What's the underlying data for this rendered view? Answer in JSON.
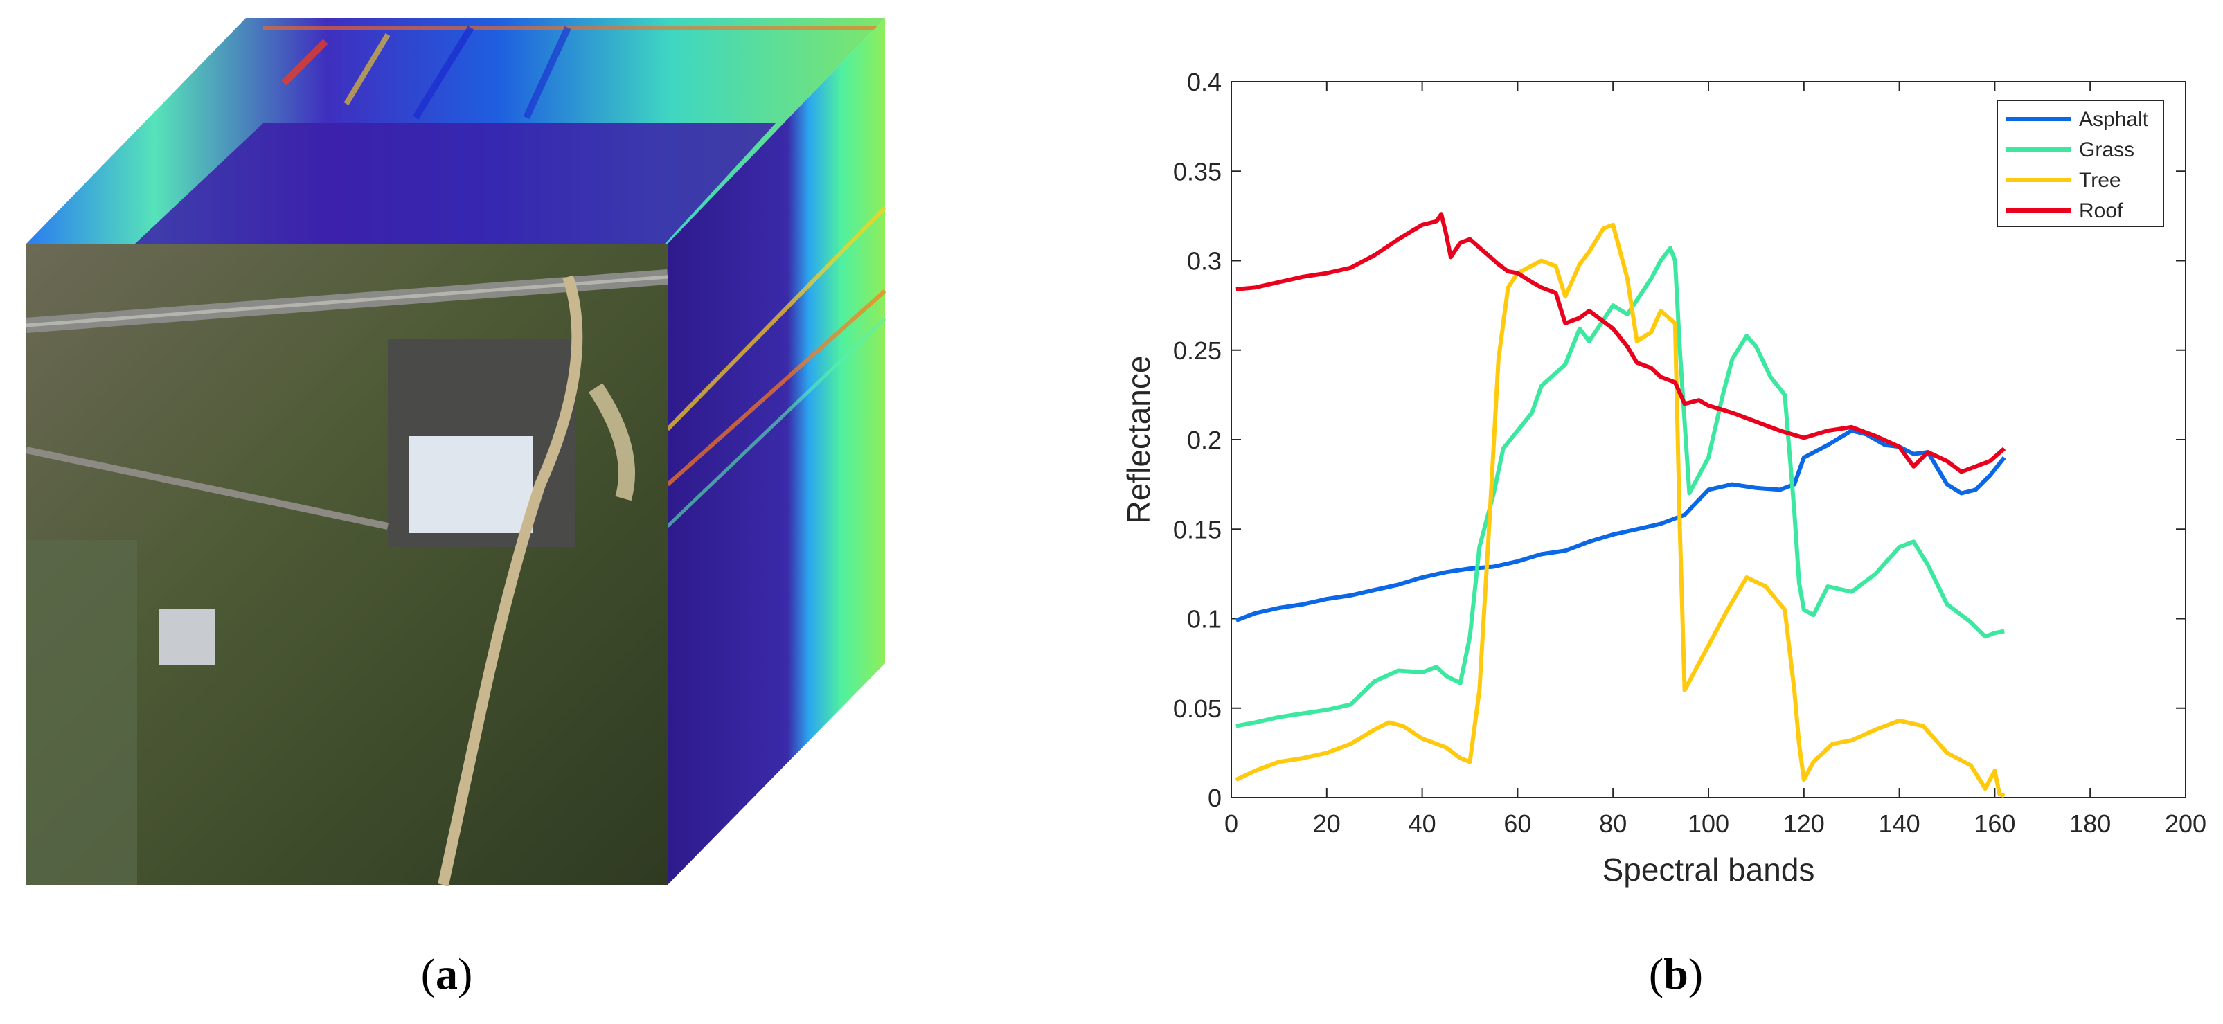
{
  "panels": {
    "a": {
      "label": "a"
    },
    "b": {
      "label": "b"
    }
  },
  "chart_data": {
    "type": "line",
    "title": "",
    "xlabel": "Spectral bands",
    "ylabel": "Reflectance",
    "xlim": [
      0,
      200
    ],
    "ylim": [
      0,
      0.4
    ],
    "xticks": [
      0,
      20,
      40,
      60,
      80,
      100,
      120,
      140,
      160,
      180,
      200
    ],
    "yticks": [
      0,
      0.05,
      0.1,
      0.15,
      0.2,
      0.25,
      0.3,
      0.35,
      0.4
    ],
    "legend_position": "top-right",
    "series": [
      {
        "name": "Asphalt",
        "color": "#0a67e6",
        "x": [
          1,
          5,
          10,
          15,
          20,
          25,
          30,
          35,
          40,
          45,
          50,
          55,
          60,
          65,
          70,
          75,
          80,
          85,
          90,
          95,
          100,
          105,
          110,
          115,
          118,
          120,
          125,
          130,
          133,
          137,
          140,
          143,
          146,
          150,
          153,
          156,
          159,
          162
        ],
        "values": [
          0.099,
          0.103,
          0.106,
          0.108,
          0.111,
          0.113,
          0.116,
          0.119,
          0.123,
          0.126,
          0.128,
          0.129,
          0.132,
          0.136,
          0.138,
          0.143,
          0.147,
          0.15,
          0.153,
          0.158,
          0.172,
          0.175,
          0.173,
          0.172,
          0.175,
          0.19,
          0.197,
          0.205,
          0.203,
          0.197,
          0.196,
          0.192,
          0.193,
          0.175,
          0.17,
          0.172,
          0.18,
          0.19
        ]
      },
      {
        "name": "Grass",
        "color": "#3ce8a0",
        "x": [
          1,
          5,
          10,
          15,
          20,
          25,
          30,
          35,
          40,
          43,
          45,
          48,
          50,
          52,
          55,
          57,
          60,
          63,
          65,
          70,
          73,
          75,
          80,
          83,
          85,
          88,
          90,
          92,
          93,
          94,
          96,
          100,
          103,
          105,
          108,
          110,
          113,
          116,
          118,
          119,
          120,
          122,
          125,
          130,
          135,
          140,
          143,
          146,
          150,
          155,
          158,
          160,
          162
        ],
        "values": [
          0.04,
          0.042,
          0.045,
          0.047,
          0.049,
          0.052,
          0.065,
          0.071,
          0.07,
          0.073,
          0.068,
          0.064,
          0.09,
          0.14,
          0.17,
          0.195,
          0.205,
          0.215,
          0.23,
          0.242,
          0.262,
          0.255,
          0.275,
          0.27,
          0.278,
          0.29,
          0.3,
          0.307,
          0.3,
          0.25,
          0.17,
          0.19,
          0.225,
          0.245,
          0.258,
          0.252,
          0.235,
          0.225,
          0.16,
          0.12,
          0.105,
          0.102,
          0.118,
          0.115,
          0.125,
          0.14,
          0.143,
          0.13,
          0.108,
          0.098,
          0.09,
          0.092,
          0.093
        ]
      },
      {
        "name": "Tree",
        "color": "#ffc90e",
        "x": [
          1,
          5,
          10,
          15,
          20,
          25,
          30,
          33,
          36,
          40,
          45,
          48,
          50,
          52,
          54,
          56,
          58,
          60,
          65,
          68,
          70,
          73,
          75,
          78,
          80,
          83,
          85,
          88,
          90,
          93,
          94,
          95,
          96,
          100,
          104,
          108,
          112,
          116,
          118,
          119,
          120,
          122,
          126,
          130,
          135,
          140,
          145,
          150,
          155,
          158,
          160,
          161,
          162
        ],
        "values": [
          0.01,
          0.015,
          0.02,
          0.022,
          0.025,
          0.03,
          0.038,
          0.042,
          0.04,
          0.033,
          0.028,
          0.022,
          0.02,
          0.06,
          0.15,
          0.245,
          0.285,
          0.293,
          0.3,
          0.297,
          0.28,
          0.298,
          0.305,
          0.318,
          0.32,
          0.29,
          0.255,
          0.26,
          0.272,
          0.265,
          0.15,
          0.06,
          0.065,
          0.085,
          0.105,
          0.123,
          0.118,
          0.105,
          0.06,
          0.03,
          0.01,
          0.02,
          0.03,
          0.032,
          0.038,
          0.043,
          0.04,
          0.025,
          0.018,
          0.005,
          0.015,
          0.002,
          0.001
        ]
      },
      {
        "name": "Roof",
        "color": "#e8001c",
        "x": [
          1,
          5,
          10,
          15,
          20,
          25,
          30,
          35,
          40,
          43,
          44,
          45,
          46,
          48,
          50,
          53,
          56,
          58,
          60,
          63,
          65,
          68,
          70,
          73,
          75,
          80,
          83,
          85,
          88,
          90,
          93,
          95,
          98,
          100,
          105,
          110,
          115,
          120,
          125,
          130,
          135,
          140,
          143,
          146,
          150,
          153,
          156,
          159,
          162
        ],
        "values": [
          0.284,
          0.285,
          0.288,
          0.291,
          0.293,
          0.296,
          0.303,
          0.312,
          0.32,
          0.322,
          0.326,
          0.315,
          0.302,
          0.31,
          0.312,
          0.305,
          0.298,
          0.294,
          0.293,
          0.288,
          0.285,
          0.282,
          0.265,
          0.268,
          0.272,
          0.262,
          0.252,
          0.243,
          0.24,
          0.235,
          0.232,
          0.22,
          0.222,
          0.219,
          0.215,
          0.21,
          0.205,
          0.201,
          0.205,
          0.207,
          0.202,
          0.196,
          0.185,
          0.193,
          0.188,
          0.182,
          0.185,
          0.188,
          0.195
        ]
      }
    ]
  }
}
